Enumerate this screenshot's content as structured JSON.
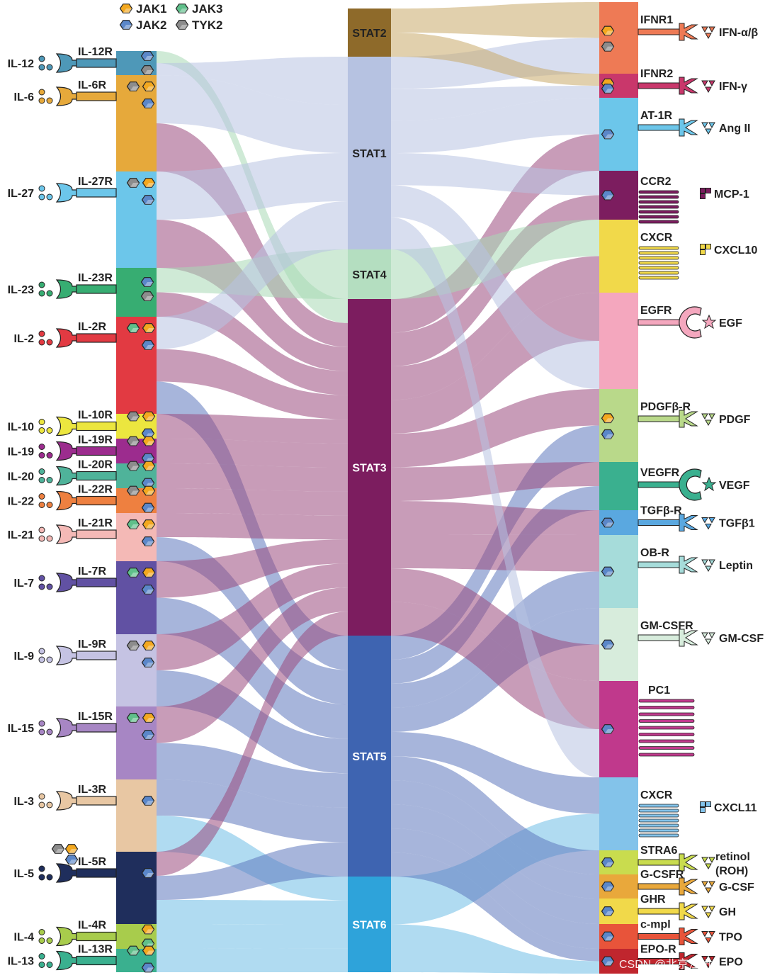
{
  "legend": [
    {
      "name": "JAK1",
      "color": "#f3a81f"
    },
    {
      "name": "JAK3",
      "color": "#5fbf8a"
    },
    {
      "name": "JAK2",
      "color": "#5b87c9"
    },
    {
      "name": "TYK2",
      "color": "#8c8c8c"
    }
  ],
  "jak_colors": {
    "JAK1": "#f3a81f",
    "JAK2": "#5b87c9",
    "JAK3": "#5fbf8a",
    "TYK2": "#8c8c8c"
  },
  "left_receptors": [
    {
      "ligand": "IL-12",
      "receptor": "IL-12R",
      "color": "#4e98b8",
      "jaks": [
        "JAK2",
        "TYK2"
      ]
    },
    {
      "ligand": "IL-6",
      "receptor": "IL-6R",
      "color": "#e6a93b",
      "jaks": [
        "TYK2",
        "JAK1",
        "JAK2"
      ]
    },
    {
      "ligand": "IL-27",
      "receptor": "IL-27R",
      "color": "#6cc6ea",
      "jaks": [
        "TYK2",
        "JAK1",
        "JAK2"
      ]
    },
    {
      "ligand": "IL-23",
      "receptor": "IL-23R",
      "color": "#37ad72",
      "jaks": [
        "JAK2",
        "TYK2"
      ]
    },
    {
      "ligand": "IL-2",
      "receptor": "IL-2R",
      "color": "#e23a42",
      "jaks": [
        "JAK3",
        "JAK1",
        "JAK2"
      ]
    },
    {
      "ligand": "IL-10",
      "receptor": "IL-10R",
      "color": "#ece63f",
      "jaks": [
        "TYK2",
        "JAK1",
        "JAK2"
      ]
    },
    {
      "ligand": "IL-19",
      "receptor": "IL-19R",
      "color": "#9c2c8e",
      "jaks": [
        "TYK2",
        "JAK1",
        "JAK2"
      ]
    },
    {
      "ligand": "IL-20",
      "receptor": "IL-20R",
      "color": "#4fb39a",
      "jaks": [
        "TYK2",
        "JAK1",
        "JAK2"
      ]
    },
    {
      "ligand": "IL-22",
      "receptor": "IL-22R",
      "color": "#ee8040",
      "jaks": [
        "TYK2",
        "JAK1",
        "JAK2"
      ]
    },
    {
      "ligand": "IL-21",
      "receptor": "IL-21R",
      "color": "#f4b9b6",
      "jaks": [
        "JAK3",
        "JAK1",
        "JAK2"
      ]
    },
    {
      "ligand": "IL-7",
      "receptor": "IL-7R",
      "color": "#6151a3",
      "jaks": [
        "JAK3",
        "JAK1",
        "JAK2"
      ]
    },
    {
      "ligand": "IL-9",
      "receptor": "IL-9R",
      "color": "#c5c3e3",
      "jaks": [
        "TYK2",
        "JAK1",
        "JAK2"
      ]
    },
    {
      "ligand": "IL-15",
      "receptor": "IL-15R",
      "color": "#a786c4",
      "jaks": [
        "JAK3",
        "JAK1",
        "JAK2"
      ]
    },
    {
      "ligand": "IL-3",
      "receptor": "IL-3R",
      "color": "#e8c7a3",
      "jaks": [
        "JAK2"
      ]
    },
    {
      "ligand": "IL-5",
      "receptor": "IL-5R",
      "color": "#1f2e5c",
      "jaks": [
        "JAK2"
      ]
    },
    {
      "ligand": "IL-4",
      "receptor": "IL-4R",
      "color": "#a8cc4c",
      "jaks": [
        "JAK1",
        "JAK3"
      ]
    },
    {
      "ligand": "IL-13",
      "receptor": "IL-13R",
      "color": "#3ab08f",
      "jaks": [
        "JAK3",
        "JAK1",
        "JAK2"
      ]
    }
  ],
  "il5_extra_jaks": [
    "TYK2",
    "JAK1",
    "JAK2"
  ],
  "stats": [
    {
      "name": "STAT2",
      "color": "#8e6a2a"
    },
    {
      "name": "STAT1",
      "color": "#a9b7dc"
    },
    {
      "name": "STAT4",
      "color": "#a7d8b5"
    },
    {
      "name": "STAT3",
      "color": "#7c1d5f"
    },
    {
      "name": "STAT5",
      "color": "#3e64b1"
    },
    {
      "name": "STAT6",
      "color": "#2ea3da"
    }
  ],
  "right_receptors": [
    {
      "receptor": "IFNR1",
      "ligand": "IFN-α/β",
      "color": "#ee7a55",
      "jaks": [
        "JAK1",
        "TYK2"
      ]
    },
    {
      "receptor": "IFNR2",
      "ligand": "IFN-γ",
      "color": "#c9376b",
      "jaks": [
        "JAK1",
        "JAK2"
      ]
    },
    {
      "receptor": "AT-1R",
      "ligand": "Ang II",
      "color": "#6cc6ea",
      "jaks": [
        "JAK2"
      ]
    },
    {
      "receptor": "CCR2",
      "ligand": "MCP-1",
      "color": "#7c1d5f",
      "jaks": [
        "JAK2"
      ]
    },
    {
      "receptor": "CXCR",
      "ligand": "CXCL10",
      "color": "#f1d94a",
      "jaks": []
    },
    {
      "receptor": "EGFR",
      "ligand": "EGF",
      "color": "#f4a7be",
      "jaks": []
    },
    {
      "receptor": "PDGFβ-R",
      "ligand": "PDGF",
      "color": "#b9d98a",
      "jaks": [
        "JAK1",
        "JAK2"
      ]
    },
    {
      "receptor": "VEGFR",
      "ligand": "VEGF",
      "color": "#3ab08f",
      "jaks": []
    },
    {
      "receptor": "TGFβ-R",
      "ligand": "TGFβ1",
      "color": "#5aa8e0",
      "jaks": [
        "JAK2"
      ]
    },
    {
      "receptor": "OB-R",
      "ligand": "Leptin",
      "color": "#a6dcda",
      "jaks": [
        "JAK2"
      ]
    },
    {
      "receptor": "GM-CSFR",
      "ligand": "GM-CSF",
      "color": "#d7ecdc",
      "jaks": [
        "JAK2"
      ]
    },
    {
      "receptor": "PC1",
      "ligand": "",
      "color": "#c0398c",
      "jaks": [
        "JAK2"
      ]
    },
    {
      "receptor": "CXCR",
      "ligand": "CXCL11",
      "color": "#83c3ea",
      "jaks": []
    },
    {
      "receptor": "STRA6",
      "ligand": "retinol (ROH)",
      "color": "#c9dc4e",
      "jaks": [
        "JAK2"
      ]
    },
    {
      "receptor": "G-CSFR",
      "ligand": "G-CSF",
      "color": "#e9a83b",
      "jaks": [
        "JAK2"
      ]
    },
    {
      "receptor": "GHR",
      "ligand": "GH",
      "color": "#f1d94a",
      "jaks": [
        "JAK2"
      ]
    },
    {
      "receptor": "c-mpl",
      "ligand": "TPO",
      "color": "#e8543a",
      "jaks": [
        "JAK2"
      ]
    },
    {
      "receptor": "EPO-R",
      "ligand": "EPO",
      "color": "#c0262e",
      "jaks": [
        "JAK2"
      ]
    }
  ],
  "watermark": "CSDN @北京江州"
}
